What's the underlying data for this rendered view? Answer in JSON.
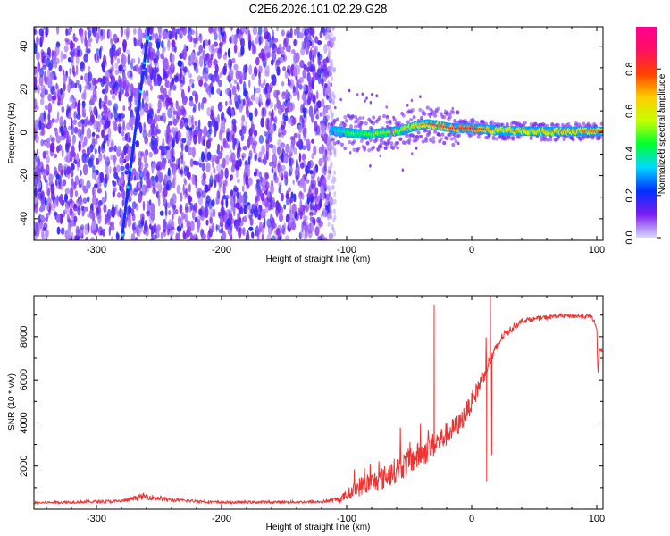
{
  "title": "C2E6.2026.101.02.29.G28",
  "chart_data": [
    {
      "type": "heatmap",
      "title": "C2E6.2026.101.02.29.G28",
      "xlabel": "Height of straight line (km)",
      "ylabel": "Frequency (Hz)",
      "xlim": [
        -350,
        105
      ],
      "ylim": [
        -50,
        49
      ],
      "xticks": [
        -300,
        -200,
        -100,
        0,
        100
      ],
      "yticks": [
        -40,
        -20,
        0,
        20,
        40
      ],
      "noise_region_x": [
        -350,
        -112
      ],
      "signal_track": [
        {
          "x": -112,
          "y": 1,
          "amp": 0.3
        },
        {
          "x": -100,
          "y": 0,
          "amp": 0.45
        },
        {
          "x": -85,
          "y": -1,
          "amp": 0.5
        },
        {
          "x": -70,
          "y": 0,
          "amp": 0.55
        },
        {
          "x": -55,
          "y": 1,
          "amp": 0.6
        },
        {
          "x": -45,
          "y": 3,
          "amp": 0.65
        },
        {
          "x": -35,
          "y": 4,
          "amp": 0.75
        },
        {
          "x": -25,
          "y": 3,
          "amp": 0.8
        },
        {
          "x": -15,
          "y": 2,
          "amp": 0.85
        },
        {
          "x": 0,
          "y": 2,
          "amp": 0.9
        },
        {
          "x": 20,
          "y": 1,
          "amp": 0.7
        },
        {
          "x": 50,
          "y": 0.5,
          "amp": 0.65
        },
        {
          "x": 80,
          "y": 0.5,
          "amp": 0.7
        },
        {
          "x": 103,
          "y": 0.5,
          "amp": 0.75
        }
      ],
      "diagonal_trace": [
        {
          "x": -280,
          "y": -50
        },
        {
          "x": -268,
          "y": 5
        },
        {
          "x": -258,
          "y": 49
        }
      ]
    },
    {
      "type": "line",
      "xlabel": "Height of straight line (km)",
      "ylabel": "SNR (10 * v/v)",
      "xlim": [
        -350,
        105
      ],
      "ylim": [
        0,
        9900
      ],
      "xticks": [
        -300,
        -200,
        -100,
        0,
        100
      ],
      "yticks": [
        2000,
        4000,
        6000,
        8000
      ],
      "color": "#ee3333",
      "envelope": [
        {
          "x": -350,
          "base": 280,
          "jit": 100
        },
        {
          "x": -280,
          "base": 350,
          "jit": 150
        },
        {
          "x": -262,
          "base": 550,
          "jit": 300
        },
        {
          "x": -240,
          "base": 400,
          "jit": 150
        },
        {
          "x": -200,
          "base": 300,
          "jit": 120
        },
        {
          "x": -120,
          "base": 320,
          "jit": 120
        },
        {
          "x": -105,
          "base": 420,
          "jit": 300
        },
        {
          "x": -90,
          "base": 900,
          "jit": 900
        },
        {
          "x": -70,
          "base": 1300,
          "jit": 1100
        },
        {
          "x": -50,
          "base": 2000,
          "jit": 1300
        },
        {
          "x": -30,
          "base": 2800,
          "jit": 1200
        },
        {
          "x": -10,
          "base": 3800,
          "jit": 1000
        },
        {
          "x": 0,
          "base": 4800,
          "jit": 900
        },
        {
          "x": 10,
          "base": 6200,
          "jit": 800
        },
        {
          "x": 25,
          "base": 8000,
          "jit": 400
        },
        {
          "x": 40,
          "base": 8700,
          "jit": 250
        },
        {
          "x": 70,
          "base": 8950,
          "jit": 200
        },
        {
          "x": 96,
          "base": 8900,
          "jit": 200
        },
        {
          "x": 100,
          "base": 8400,
          "jit": 200
        },
        {
          "x": 101,
          "base": 6100,
          "jit": 100
        },
        {
          "x": 102,
          "base": 7400,
          "jit": 150
        },
        {
          "x": 105,
          "base": 7300,
          "jit": 150
        }
      ],
      "spikes": [
        {
          "x": -30,
          "y": 9500
        },
        {
          "x": 12,
          "y": 1300
        },
        {
          "x": 15,
          "y": 9900
        },
        {
          "x": 16,
          "y": 2500
        }
      ]
    }
  ],
  "colorbar": {
    "label": "Normalized spectral amplitude",
    "min": 0.0,
    "max": 1.0,
    "ticks": [
      "0.0",
      "0.2",
      "0.4",
      "0.6",
      "0.8"
    ],
    "stops": [
      "#d9d9ff",
      "#7a1cf0",
      "#0030ff",
      "#00d8ff",
      "#00ff30",
      "#c8ff00",
      "#ffcc00",
      "#ff4000",
      "#ff1060",
      "#ff0090"
    ]
  }
}
